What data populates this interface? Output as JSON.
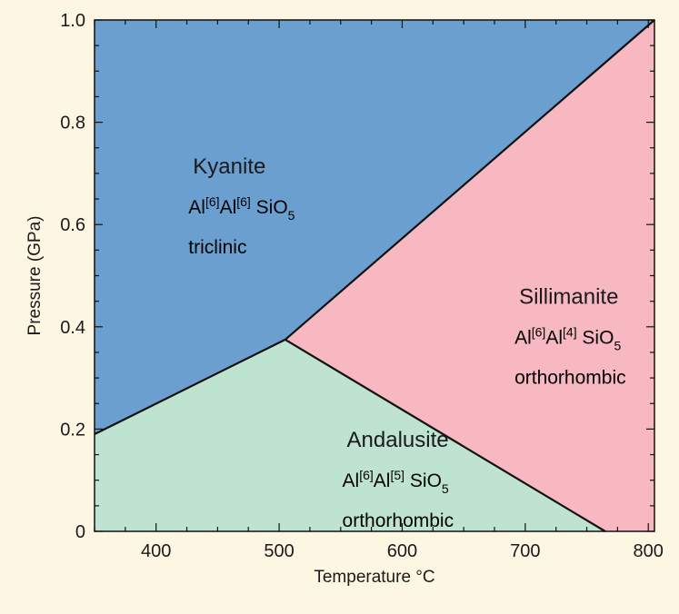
{
  "chart_data": {
    "type": "phase-diagram",
    "xlabel": "Temperature °C",
    "ylabel": "Pressure (GPa)",
    "xlim": [
      350,
      805
    ],
    "ylim": [
      0,
      1.0
    ],
    "x_ticks": [
      400,
      500,
      600,
      700,
      800
    ],
    "y_ticks": [
      0,
      0.2,
      0.4,
      0.6,
      0.8,
      1.0
    ],
    "x_tick_labels": [
      "400",
      "500",
      "600",
      "700",
      "800"
    ],
    "y_tick_labels": [
      "0",
      "0.2",
      "0.4",
      "0.6",
      "0.8",
      "1.0"
    ],
    "grid": false,
    "triple_point": {
      "x": 505,
      "y": 0.375
    },
    "boundaries": [
      {
        "name": "kyanite-andalusite",
        "points": [
          [
            350,
            0.19
          ],
          [
            505,
            0.375
          ]
        ]
      },
      {
        "name": "kyanite-sillimanite",
        "points": [
          [
            505,
            0.375
          ],
          [
            805,
            1.0
          ]
        ]
      },
      {
        "name": "andalusite-sillimanite",
        "points": [
          [
            505,
            0.375
          ],
          [
            765,
            0.0
          ]
        ]
      }
    ],
    "regions": [
      {
        "name": "Kyanite",
        "color": "#6b9fcf",
        "formula_parts": [
          "Al",
          "[6]",
          "Al",
          "[6]",
          " SiO",
          "5"
        ],
        "crystal_system": "triclinic",
        "label_at": [
          430,
          0.7
        ]
      },
      {
        "name": "Sillimanite",
        "color": "#f7b8c1",
        "formula_parts": [
          "Al",
          "[6]",
          "Al",
          "[4]",
          " SiO",
          "5"
        ],
        "crystal_system": "orthorhombic",
        "label_at": [
          695,
          0.445
        ]
      },
      {
        "name": "Andalusite",
        "color": "#bfe3d1",
        "formula_parts": [
          "Al",
          "[6]",
          "Al",
          "[5]",
          " SiO",
          "5"
        ],
        "crystal_system": "orthorhombic",
        "label_at": [
          555,
          0.165
        ]
      }
    ]
  }
}
